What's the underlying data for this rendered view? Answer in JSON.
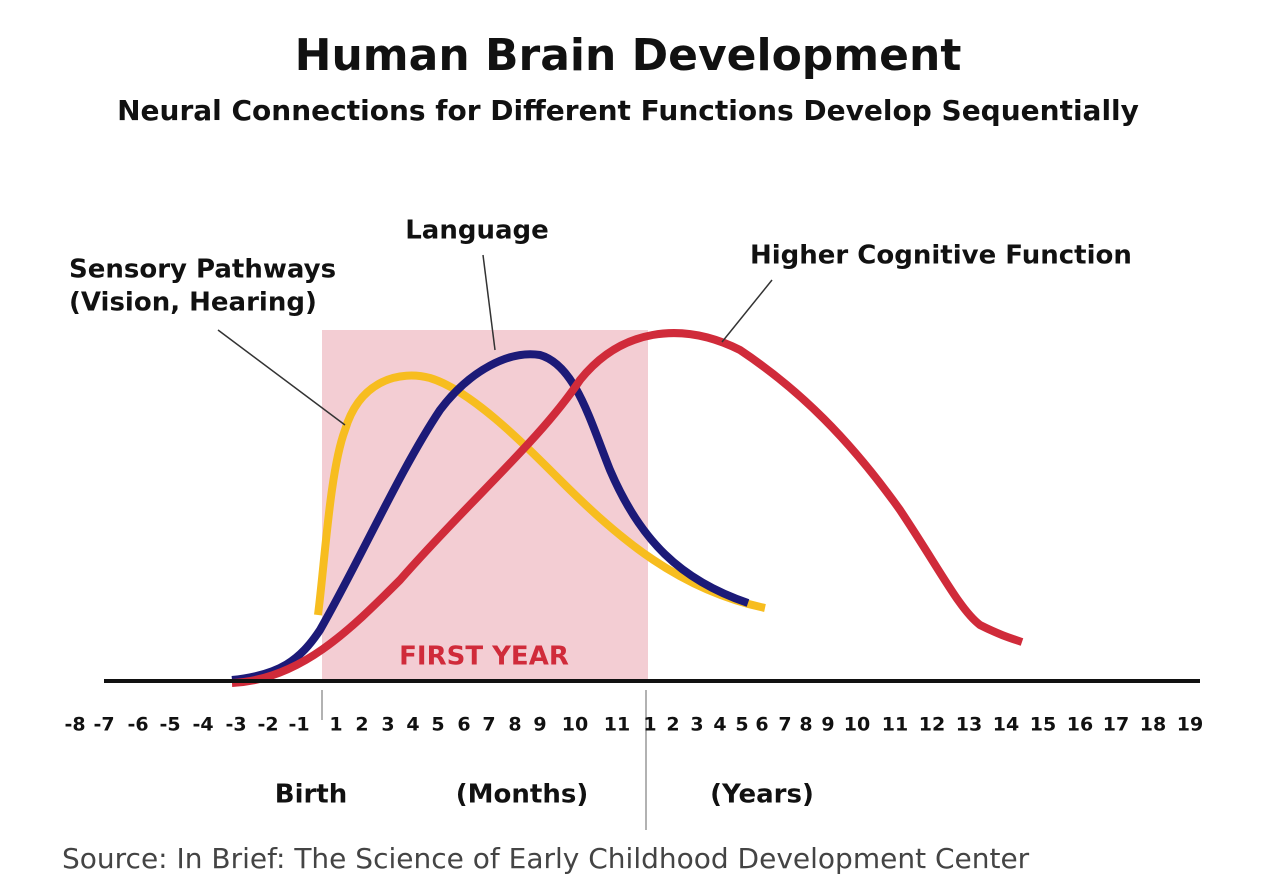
{
  "header": {
    "title": "Human Brain Development",
    "subtitle": "Neural Connections for Different Functions Develop Sequentially"
  },
  "curves": [
    {
      "label": "Sensory Pathways",
      "label_line2": "(Vision, Hearing)"
    },
    {
      "label": "Language"
    },
    {
      "label": "Higher Cognitive Function"
    }
  ],
  "highlight": "FIRST YEAR",
  "axis_ticks": [
    "-8",
    "-7",
    "-6",
    "-5",
    "-4",
    "-3",
    "-2",
    "-1",
    "1",
    "2",
    "3",
    "4",
    "5",
    "6",
    "7",
    "8",
    "9",
    "10",
    "11",
    "1",
    "2",
    "3",
    "4",
    "5",
    "6",
    "7",
    "8",
    "9",
    "10",
    "11",
    "12",
    "13",
    "14",
    "15",
    "16",
    "17",
    "18",
    "19"
  ],
  "axis_labels": [
    "Birth",
    "(Months)",
    "(Years)"
  ],
  "source": "Source: In Brief: The Science of Early Childhood Development Center"
}
